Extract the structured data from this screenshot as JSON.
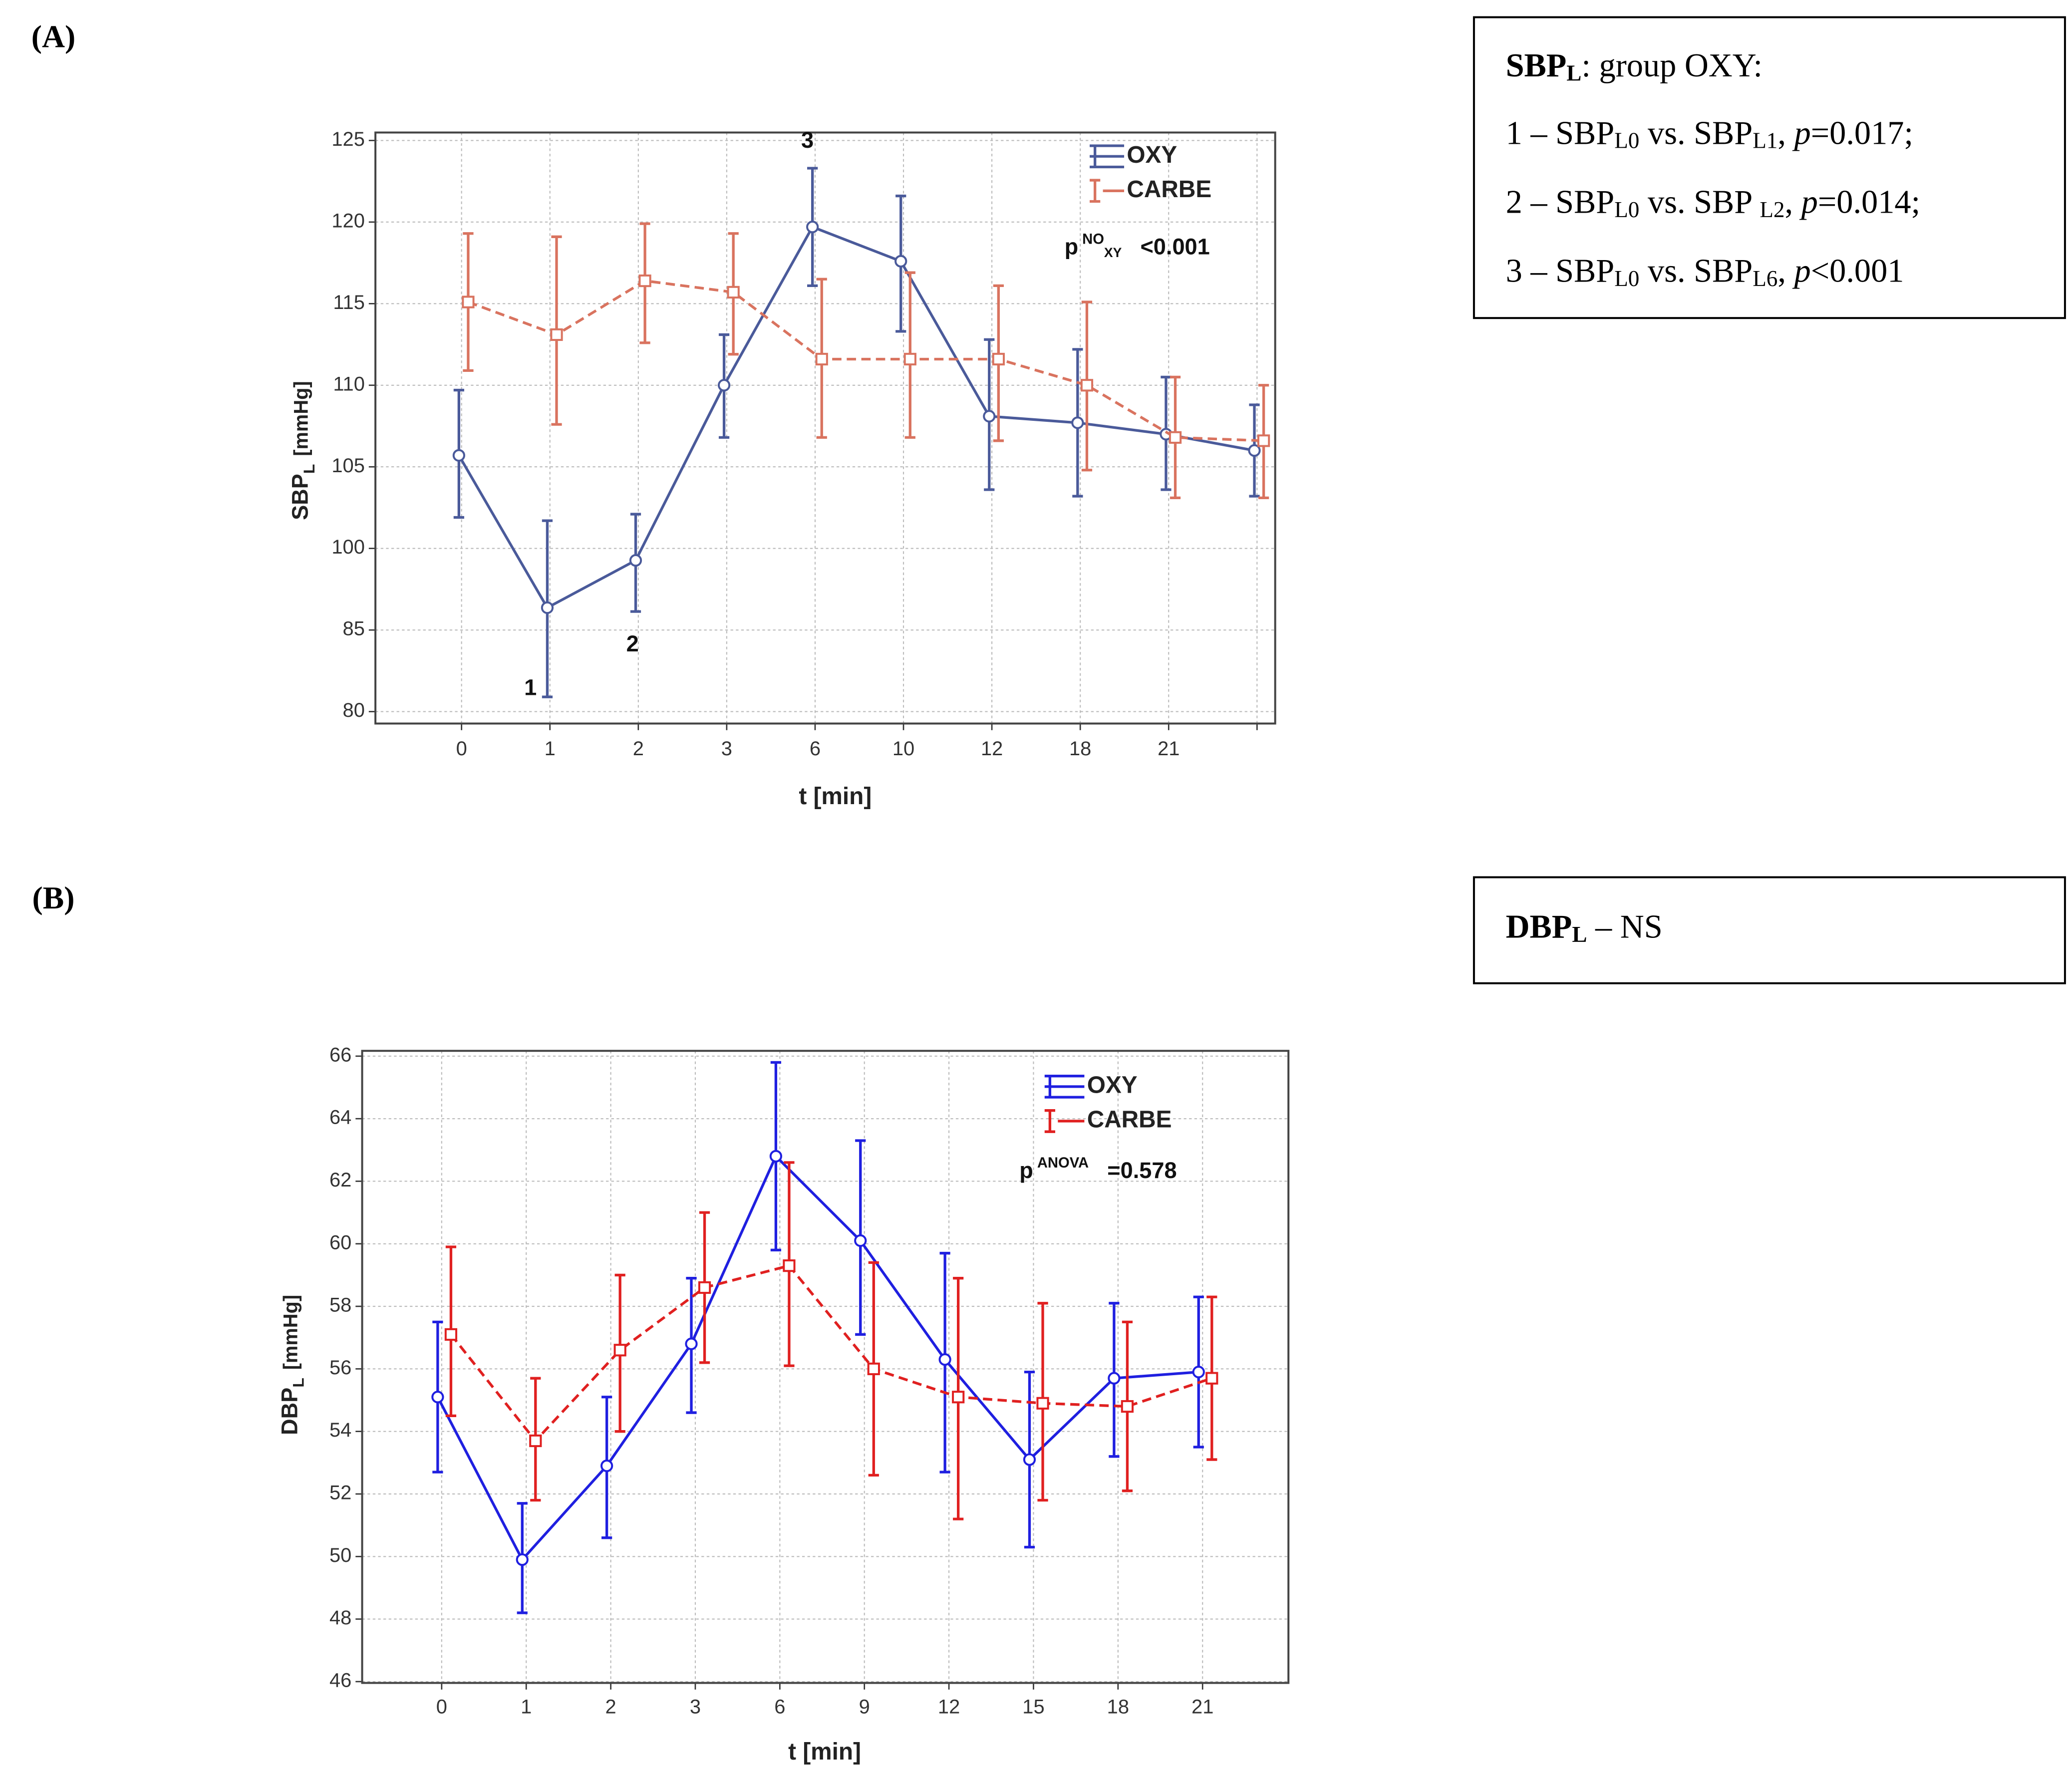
{
  "chart_data": [
    {
      "type": "line",
      "panel": "(A)",
      "y_label": "SBP",
      "y_label_sub": "L",
      "y_label_unit": "[mmHg]",
      "x_label": "t [min]",
      "categories": [
        0,
        1,
        2,
        3,
        6,
        10,
        12,
        18,
        21,
        null
      ],
      "ylim": [
        80,
        125
      ],
      "yticks": [
        80,
        85,
        100,
        105,
        110,
        115,
        120,
        125
      ],
      "grid": true,
      "series": [
        {
          "name": "OXY",
          "color": "#4a5a9a",
          "dash": false,
          "marker": "circle",
          "values": [
            105.7,
            89.1,
            97.8,
            110,
            119.7,
            117.6,
            108.1,
            107.7,
            107.0,
            106.0
          ],
          "lower": [
            101.9,
            80.9,
            88.4,
            106.8,
            116.1,
            113.3,
            103.6,
            103.2,
            103.6,
            103.2
          ],
          "upper": [
            109.7,
            101.7,
            102.1,
            113.1,
            123.3,
            121.6,
            112.8,
            112.2,
            110.5,
            108.8
          ]
        },
        {
          "name": "CARBE",
          "color": "#d9735f",
          "dash": true,
          "marker": "square",
          "values": [
            115.1,
            113.1,
            116.4,
            115.7,
            111.6,
            111.6,
            111.6,
            110.0,
            106.8,
            106.6
          ],
          "lower": [
            110.9,
            107.6,
            112.6,
            111.9,
            106.8,
            106.8,
            106.6,
            104.8,
            103.1,
            103.1
          ],
          "upper": [
            119.3,
            119.1,
            119.9,
            119.3,
            116.5,
            116.9,
            116.1,
            115.1,
            110.5,
            110.0
          ]
        }
      ],
      "p_annotation": {
        "p": "p",
        "sup": "NO",
        "sub": "XY",
        "value": "<0.001"
      },
      "annotations": [
        "1",
        "2",
        "3"
      ]
    },
    {
      "type": "line",
      "panel": "(B)",
      "y_label": "DBP",
      "y_label_sub": "L",
      "y_label_unit": "[mmHg]",
      "x_label": "t [min]",
      "categories": [
        0,
        1,
        2,
        3,
        6,
        9,
        12,
        15,
        18,
        21
      ],
      "ylim": [
        46,
        66
      ],
      "yticks": [
        46,
        48,
        50,
        52,
        54,
        56,
        58,
        60,
        62,
        64,
        66
      ],
      "grid": true,
      "series": [
        {
          "name": "OXY",
          "color": "#1f1fe0",
          "dash": false,
          "marker": "circle",
          "values": [
            55.1,
            49.9,
            52.9,
            56.8,
            62.8,
            60.1,
            56.3,
            53.1,
            55.7,
            55.9
          ],
          "lower": [
            52.7,
            48.2,
            50.6,
            54.6,
            59.8,
            57.1,
            52.7,
            50.3,
            53.2,
            53.5
          ],
          "upper": [
            57.5,
            51.7,
            55.1,
            58.9,
            65.8,
            63.3,
            59.7,
            55.9,
            58.1,
            58.3
          ]
        },
        {
          "name": "CARBE",
          "color": "#e02020",
          "dash": true,
          "marker": "square",
          "values": [
            57.1,
            53.7,
            56.6,
            58.6,
            59.3,
            56.0,
            55.1,
            54.9,
            54.8,
            55.7
          ],
          "lower": [
            54.5,
            51.8,
            54.0,
            56.2,
            56.1,
            52.6,
            51.2,
            51.8,
            52.1,
            53.1
          ],
          "upper": [
            59.9,
            55.7,
            59.0,
            61.0,
            62.6,
            59.4,
            58.9,
            58.1,
            57.5,
            58.3
          ]
        }
      ],
      "p_annotation": {
        "p": "p",
        "sup": "ANOVA",
        "value": "=0.578"
      }
    }
  ],
  "notes": [
    {
      "lines": [
        [
          {
            "t": "SBP",
            "s": "b"
          },
          {
            "t": "L",
            "s": "bsub"
          },
          {
            "t": ": group OXY:"
          }
        ],
        [
          {
            "t": "1 – SBP"
          },
          {
            "t": "L0",
            "s": "sub"
          },
          {
            "t": " vs. SBP"
          },
          {
            "t": "L1",
            "s": "sub"
          },
          {
            "t": ", "
          },
          {
            "t": "p",
            "s": "i"
          },
          {
            "t": "=0.017;"
          }
        ],
        [
          {
            "t": "2 – SBP"
          },
          {
            "t": "L0",
            "s": "sub"
          },
          {
            "t": " vs. SBP "
          },
          {
            "t": "L2",
            "s": "sub"
          },
          {
            "t": ", "
          },
          {
            "t": "p",
            "s": "i"
          },
          {
            "t": "=0.014;"
          }
        ],
        [
          {
            "t": "3 – SBP"
          },
          {
            "t": "L0",
            "s": "sub"
          },
          {
            "t": " vs. SBP"
          },
          {
            "t": "L6",
            "s": "sub"
          },
          {
            "t": ", "
          },
          {
            "t": "p",
            "s": "i"
          },
          {
            "t": "<0.001"
          }
        ]
      ]
    },
    {
      "lines": [
        [
          {
            "t": "DBP",
            "s": "b"
          },
          {
            "t": "L",
            "s": "bsub"
          },
          {
            "t": " – NS"
          }
        ]
      ]
    }
  ]
}
